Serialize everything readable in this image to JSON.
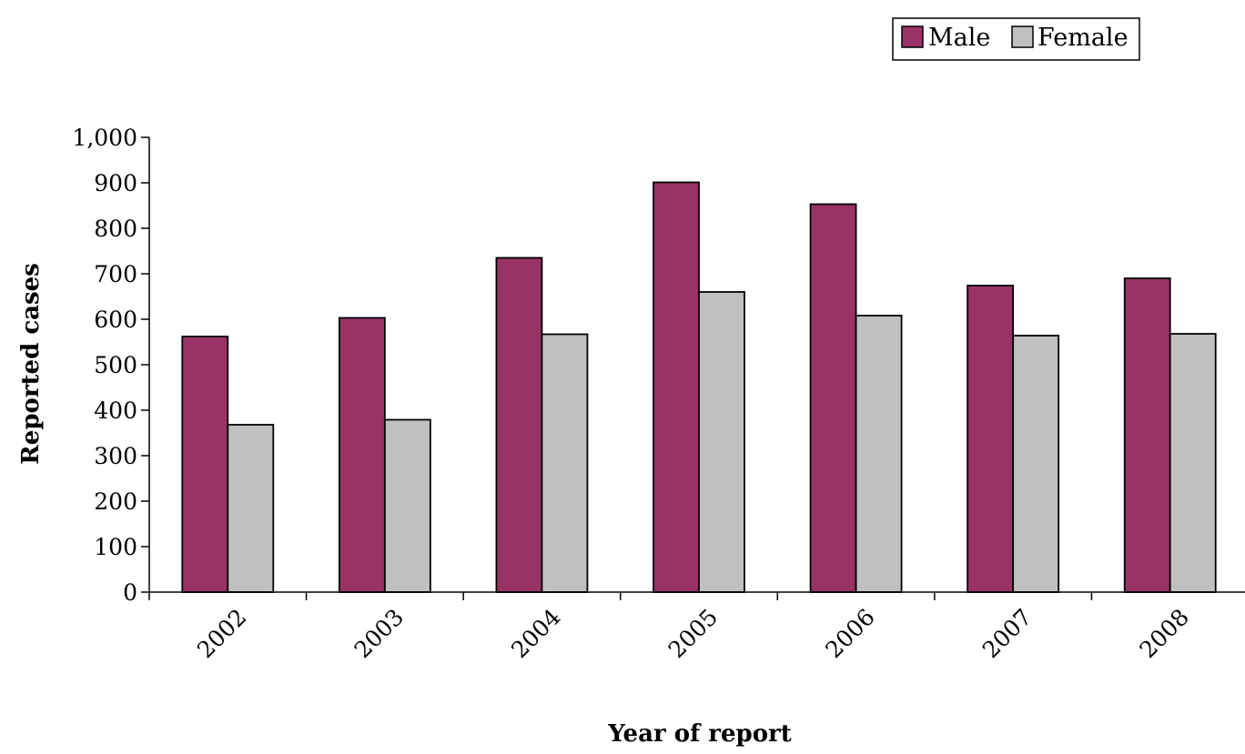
{
  "chart_data": {
    "type": "bar",
    "categories": [
      "2002",
      "2003",
      "2004",
      "2005",
      "2006",
      "2007",
      "2008"
    ],
    "series": [
      {
        "name": "Male",
        "color": "#993366",
        "values": [
          562,
          603,
          735,
          901,
          853,
          674,
          690
        ]
      },
      {
        "name": "Female",
        "color": "#c0c0c0",
        "values": [
          368,
          379,
          567,
          660,
          608,
          564,
          568
        ]
      }
    ],
    "xlabel": "Year of report",
    "ylabel": "Reported cases",
    "ylim": [
      0,
      1000
    ],
    "yticks": [
      0,
      100,
      200,
      300,
      400,
      500,
      600,
      700,
      800,
      900,
      1000
    ],
    "ytick_labels": [
      "0",
      "100",
      "200",
      "300",
      "400",
      "500",
      "600",
      "700",
      "800",
      "900",
      "1,000"
    ],
    "legend": {
      "position": "top-right"
    },
    "grid": false
  }
}
